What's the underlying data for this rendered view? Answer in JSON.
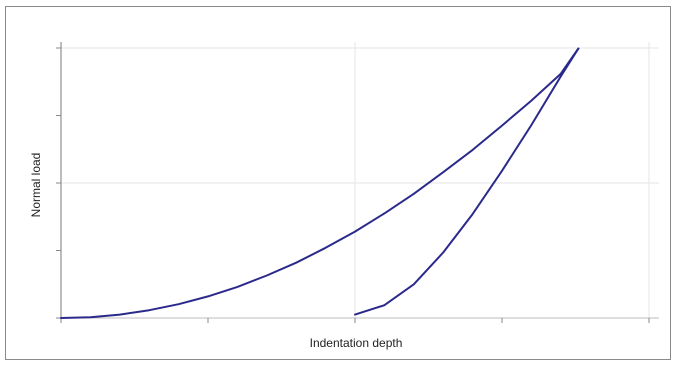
{
  "chart_data": {
    "type": "line",
    "title": "",
    "xlabel": "Indentation depth",
    "ylabel": "Normal load",
    "xlim": [
      0,
      2
    ],
    "ylim": [
      0,
      2
    ],
    "x_ticks": [
      0,
      0.5,
      1,
      1.5,
      2
    ],
    "y_ticks": [
      0,
      0.5,
      1,
      1.5,
      2
    ],
    "tick_labels_shown": false,
    "grid": true,
    "legend": "none",
    "line_color": "#2b2a8c",
    "series": [
      {
        "values": [
          [
            0.0,
            0.0
          ],
          [
            0.1,
            0.006
          ],
          [
            0.2,
            0.025
          ],
          [
            0.3,
            0.058
          ],
          [
            0.4,
            0.102
          ],
          [
            0.5,
            0.16
          ],
          [
            0.6,
            0.23
          ],
          [
            0.7,
            0.315
          ],
          [
            0.8,
            0.41
          ],
          [
            0.9,
            0.52
          ],
          [
            1.0,
            0.64
          ],
          [
            1.1,
            0.775
          ],
          [
            1.2,
            0.92
          ],
          [
            1.3,
            1.08
          ],
          [
            1.4,
            1.245
          ],
          [
            1.5,
            1.425
          ],
          [
            1.6,
            1.61
          ],
          [
            1.7,
            1.81
          ],
          [
            1.76,
            1.996
          ]
        ]
      },
      {
        "values": [
          [
            1.76,
            1.996
          ],
          [
            1.7,
            1.79
          ],
          [
            1.6,
            1.43
          ],
          [
            1.5,
            1.09
          ],
          [
            1.4,
            0.77
          ],
          [
            1.3,
            0.485
          ],
          [
            1.2,
            0.25
          ],
          [
            1.1,
            0.095
          ],
          [
            1.0,
            0.025
          ]
        ]
      }
    ]
  }
}
